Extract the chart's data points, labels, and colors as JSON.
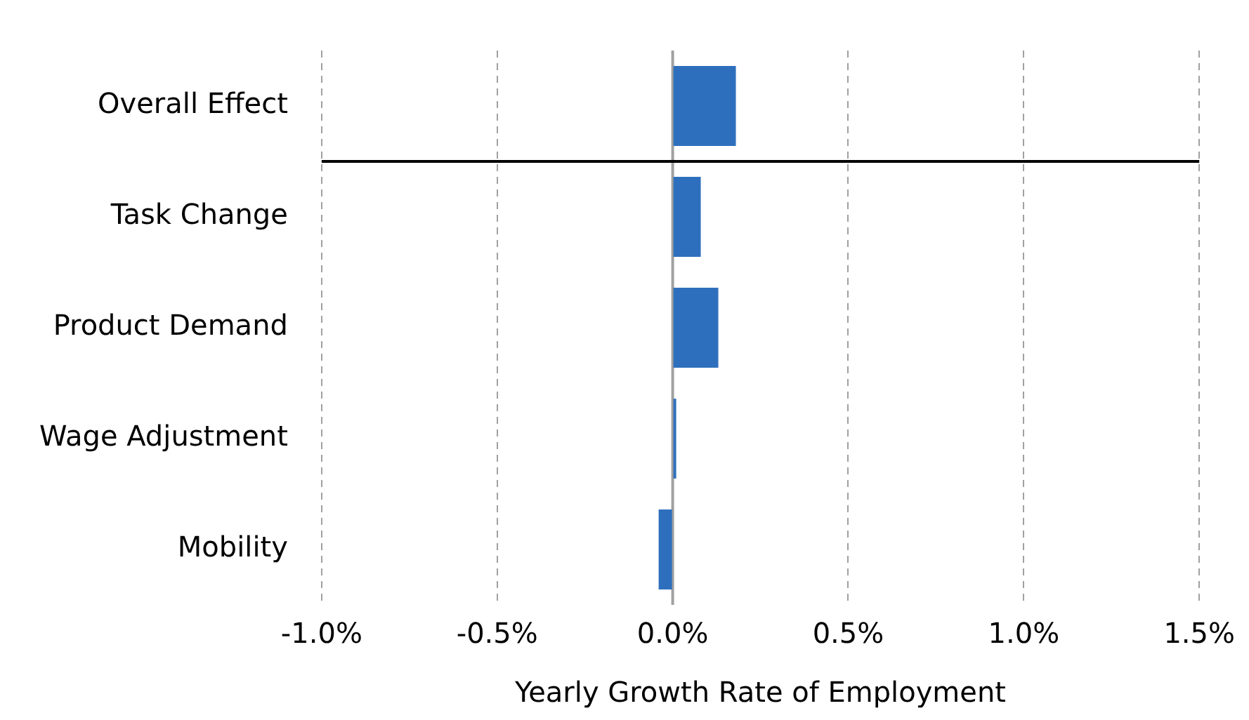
{
  "chart_data": {
    "type": "bar",
    "orientation": "horizontal",
    "xlabel": "Yearly Growth Rate of Employment",
    "categories": [
      "Overall Effect",
      "Task Change",
      "Product Demand",
      "Wage Adjustment",
      "Mobility"
    ],
    "values": [
      0.18,
      0.08,
      0.13,
      0.01,
      -0.04
    ],
    "color": "#2e6fbd",
    "xlim": [
      -1,
      1.5
    ],
    "xticks": [
      {
        "value": -1,
        "label": "-1.0%"
      },
      {
        "value": -0.5,
        "label": "-0.5%"
      },
      {
        "value": 0,
        "label": "0.0%"
      },
      {
        "value": 0.5,
        "label": "0.5%"
      },
      {
        "value": 1,
        "label": "1.0%"
      },
      {
        "value": 1.5,
        "label": "1.5%"
      }
    ],
    "ref_lines": [
      {
        "axis": "x",
        "value": 0,
        "color": "#a0a0a0"
      },
      {
        "axis": "y",
        "value": "Overall Effect",
        "color": "#000000"
      }
    ],
    "grid": "x",
    "legend": false
  }
}
